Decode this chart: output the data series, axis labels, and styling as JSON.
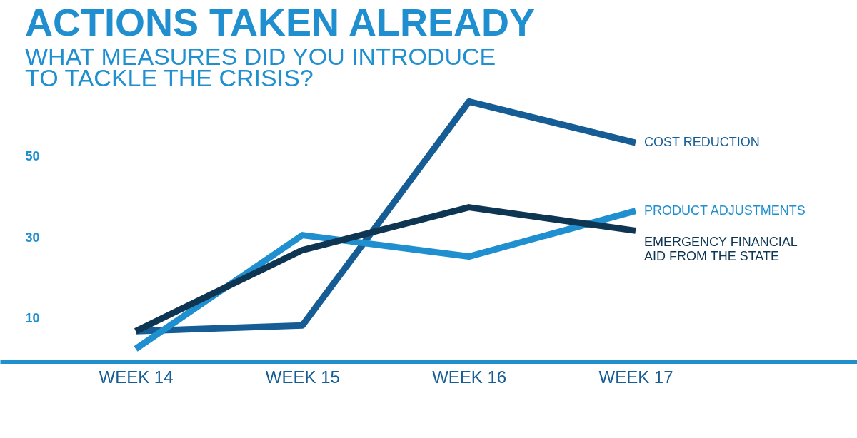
{
  "chart_data": {
    "type": "line",
    "title": "ACTIONS TAKEN ALREADY",
    "subtitle": "WHAT MEASURES DID YOU INTRODUCE TO TACKLE THE CRISIS?",
    "categories": [
      "WEEK 14",
      "WEEK 15",
      "WEEK 16",
      "WEEK 17"
    ],
    "series": [
      {
        "name": "COST REDUCTION",
        "color": "#155d94",
        "values": [
          6.8,
          8.2,
          63.7,
          53.5
        ]
      },
      {
        "name": "PRODUCT ADJUSTMENTS",
        "color": "#1f8fd0",
        "values": [
          2.4,
          30.6,
          25.3,
          36.6
        ]
      },
      {
        "name": "EMERGENCY FINANCIAL AID FROM THE STATE",
        "color": "#0e3552",
        "values": [
          6.8,
          26.9,
          37.5,
          31.7
        ]
      }
    ],
    "ylim": [
      -19.7,
      88.9
    ],
    "yticks": [
      10,
      30,
      50
    ],
    "grid": false,
    "legend": false,
    "marker": "none",
    "line_style": "solid"
  }
}
